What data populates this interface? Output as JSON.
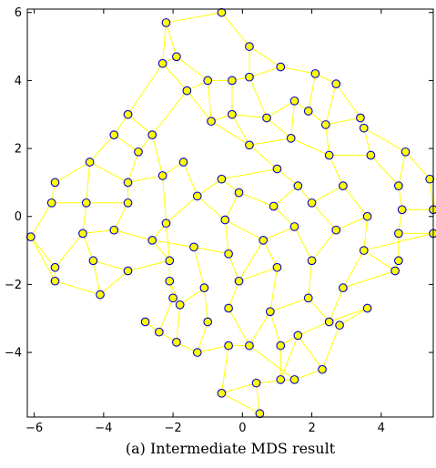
{
  "chart_data": {
    "type": "scatter",
    "caption": "(a) Intermediate MDS result",
    "xlim": [
      -6.2,
      5.5
    ],
    "ylim": [
      -5.9,
      6.1
    ],
    "xticks": [
      -6,
      -4,
      -2,
      0,
      2,
      4
    ],
    "yticks": [
      -4,
      -2,
      0,
      2,
      4,
      6
    ],
    "grid": false,
    "colors": {
      "edge": "#ffff00",
      "marker_edge": "#0000cc",
      "marker_face": "#ffff00",
      "axes": "#000000"
    },
    "points": [
      [
        -0.6,
        6.0
      ],
      [
        -2.2,
        5.7
      ],
      [
        0.2,
        5.0
      ],
      [
        -1.9,
        4.7
      ],
      [
        -2.3,
        4.5
      ],
      [
        1.1,
        4.4
      ],
      [
        2.1,
        4.2
      ],
      [
        0.2,
        4.1
      ],
      [
        -0.3,
        4.0
      ],
      [
        -1.0,
        4.0
      ],
      [
        2.7,
        3.9
      ],
      [
        -1.6,
        3.7
      ],
      [
        1.5,
        3.4
      ],
      [
        1.9,
        3.1
      ],
      [
        3.4,
        2.9
      ],
      [
        -3.3,
        3.0
      ],
      [
        0.7,
        2.9
      ],
      [
        -0.3,
        3.0
      ],
      [
        2.4,
        2.7
      ],
      [
        3.5,
        2.6
      ],
      [
        -0.9,
        2.8
      ],
      [
        -2.6,
        2.4
      ],
      [
        -3.7,
        2.4
      ],
      [
        1.4,
        2.3
      ],
      [
        0.2,
        2.1
      ],
      [
        -3.0,
        1.9
      ],
      [
        4.7,
        1.9
      ],
      [
        2.5,
        1.8
      ],
      [
        3.7,
        1.8
      ],
      [
        -4.4,
        1.6
      ],
      [
        -1.7,
        1.6
      ],
      [
        1.0,
        1.4
      ],
      [
        -2.3,
        1.2
      ],
      [
        -0.6,
        1.1
      ],
      [
        -3.3,
        1.0
      ],
      [
        -5.4,
        1.0
      ],
      [
        5.4,
        1.1
      ],
      [
        2.9,
        0.9
      ],
      [
        1.6,
        0.9
      ],
      [
        4.5,
        0.9
      ],
      [
        -1.3,
        0.6
      ],
      [
        -0.1,
        0.7
      ],
      [
        -5.5,
        0.4
      ],
      [
        -4.5,
        0.4
      ],
      [
        -3.3,
        0.4
      ],
      [
        2.0,
        0.4
      ],
      [
        0.9,
        0.3
      ],
      [
        4.6,
        0.2
      ],
      [
        5.5,
        0.2
      ],
      [
        -0.5,
        -0.1
      ],
      [
        3.6,
        0.0
      ],
      [
        -2.2,
        -0.2
      ],
      [
        1.5,
        -0.3
      ],
      [
        2.7,
        -0.4
      ],
      [
        -3.7,
        -0.4
      ],
      [
        -4.6,
        -0.5
      ],
      [
        4.5,
        -0.5
      ],
      [
        5.5,
        -0.5
      ],
      [
        -6.1,
        -0.6
      ],
      [
        -2.6,
        -0.7
      ],
      [
        0.6,
        -0.7
      ],
      [
        -1.4,
        -0.9
      ],
      [
        3.5,
        -1.0
      ],
      [
        -0.4,
        -1.1
      ],
      [
        -4.3,
        -1.3
      ],
      [
        -2.1,
        -1.3
      ],
      [
        4.5,
        -1.3
      ],
      [
        2.0,
        -1.3
      ],
      [
        1.0,
        -1.5
      ],
      [
        -3.3,
        -1.6
      ],
      [
        -5.4,
        -1.5
      ],
      [
        4.4,
        -1.6
      ],
      [
        -5.4,
        -1.9
      ],
      [
        -0.1,
        -1.9
      ],
      [
        -2.1,
        -1.9
      ],
      [
        -1.1,
        -2.1
      ],
      [
        2.9,
        -2.1
      ],
      [
        -4.1,
        -2.3
      ],
      [
        -2.0,
        -2.4
      ],
      [
        1.9,
        -2.4
      ],
      [
        -1.8,
        -2.6
      ],
      [
        -0.4,
        -2.7
      ],
      [
        3.6,
        -2.7
      ],
      [
        0.8,
        -2.8
      ],
      [
        -2.8,
        -3.1
      ],
      [
        -1.0,
        -3.1
      ],
      [
        2.5,
        -3.1
      ],
      [
        2.8,
        -3.2
      ],
      [
        -2.4,
        -3.4
      ],
      [
        1.6,
        -3.5
      ],
      [
        0.2,
        -3.8
      ],
      [
        -0.4,
        -3.8
      ],
      [
        1.1,
        -3.8
      ],
      [
        -1.9,
        -3.7
      ],
      [
        -1.3,
        -4.0
      ],
      [
        2.3,
        -4.5
      ],
      [
        1.1,
        -4.8
      ],
      [
        1.5,
        -4.8
      ],
      [
        0.4,
        -4.9
      ],
      [
        -0.6,
        -5.2
      ],
      [
        0.5,
        -5.8
      ]
    ],
    "edges": [
      [
        0,
        1
      ],
      [
        0,
        2
      ],
      [
        1,
        3
      ],
      [
        1,
        4
      ],
      [
        2,
        7
      ],
      [
        2,
        5
      ],
      [
        3,
        4
      ],
      [
        3,
        9
      ],
      [
        4,
        11
      ],
      [
        4,
        15
      ],
      [
        5,
        6
      ],
      [
        5,
        7
      ],
      [
        6,
        10
      ],
      [
        6,
        13
      ],
      [
        7,
        8
      ],
      [
        7,
        16
      ],
      [
        8,
        9
      ],
      [
        8,
        17
      ],
      [
        9,
        11
      ],
      [
        9,
        20
      ],
      [
        10,
        14
      ],
      [
        10,
        18
      ],
      [
        11,
        20
      ],
      [
        11,
        21
      ],
      [
        12,
        13
      ],
      [
        12,
        16
      ],
      [
        12,
        23
      ],
      [
        13,
        18
      ],
      [
        14,
        19
      ],
      [
        14,
        18
      ],
      [
        15,
        21
      ],
      [
        15,
        22
      ],
      [
        16,
        17
      ],
      [
        16,
        23
      ],
      [
        17,
        20
      ],
      [
        17,
        24
      ],
      [
        18,
        27
      ],
      [
        19,
        28
      ],
      [
        19,
        26
      ],
      [
        20,
        24
      ],
      [
        21,
        25
      ],
      [
        21,
        32
      ],
      [
        22,
        25
      ],
      [
        22,
        29
      ],
      [
        23,
        24
      ],
      [
        23,
        27
      ],
      [
        24,
        31
      ],
      [
        25,
        34
      ],
      [
        26,
        36
      ],
      [
        26,
        39
      ],
      [
        27,
        37
      ],
      [
        27,
        28
      ],
      [
        28,
        39
      ],
      [
        29,
        34
      ],
      [
        29,
        35
      ],
      [
        29,
        43
      ],
      [
        30,
        32
      ],
      [
        30,
        40
      ],
      [
        31,
        38
      ],
      [
        31,
        33
      ],
      [
        32,
        34
      ],
      [
        32,
        51
      ],
      [
        33,
        41
      ],
      [
        33,
        40
      ],
      [
        34,
        44
      ],
      [
        35,
        42
      ],
      [
        36,
        48
      ],
      [
        37,
        45
      ],
      [
        37,
        50
      ],
      [
        38,
        46
      ],
      [
        38,
        45
      ],
      [
        39,
        47
      ],
      [
        40,
        51
      ],
      [
        40,
        49
      ],
      [
        41,
        49
      ],
      [
        41,
        46
      ],
      [
        42,
        43
      ],
      [
        42,
        58
      ],
      [
        43,
        44
      ],
      [
        43,
        55
      ],
      [
        44,
        54
      ],
      [
        45,
        53
      ],
      [
        46,
        52
      ],
      [
        47,
        48
      ],
      [
        47,
        56
      ],
      [
        48,
        57
      ],
      [
        49,
        63
      ],
      [
        49,
        60
      ],
      [
        50,
        62
      ],
      [
        50,
        53
      ],
      [
        51,
        59
      ],
      [
        51,
        65
      ],
      [
        52,
        60
      ],
      [
        52,
        67
      ],
      [
        53,
        67
      ],
      [
        54,
        55
      ],
      [
        54,
        59
      ],
      [
        55,
        64
      ],
      [
        55,
        70
      ],
      [
        56,
        57
      ],
      [
        56,
        66
      ],
      [
        57,
        62
      ],
      [
        58,
        70
      ],
      [
        58,
        72
      ],
      [
        59,
        61
      ],
      [
        60,
        68
      ],
      [
        60,
        73
      ],
      [
        61,
        63
      ],
      [
        61,
        75
      ],
      [
        62,
        71
      ],
      [
        62,
        76
      ],
      [
        63,
        73
      ],
      [
        64,
        69
      ],
      [
        64,
        77
      ],
      [
        65,
        69
      ],
      [
        65,
        74
      ],
      [
        66,
        71
      ],
      [
        67,
        79
      ],
      [
        68,
        73
      ],
      [
        68,
        83
      ],
      [
        69,
        77
      ],
      [
        70,
        72
      ],
      [
        71,
        76
      ],
      [
        72,
        77
      ],
      [
        73,
        81
      ],
      [
        74,
        78
      ],
      [
        74,
        80
      ],
      [
        75,
        80
      ],
      [
        75,
        85
      ],
      [
        76,
        86
      ],
      [
        78,
        88
      ],
      [
        79,
        83
      ],
      [
        79,
        86
      ],
      [
        80,
        93
      ],
      [
        81,
        90
      ],
      [
        82,
        87
      ],
      [
        82,
        86
      ],
      [
        83,
        92
      ],
      [
        84,
        88
      ],
      [
        85,
        94
      ],
      [
        86,
        89
      ],
      [
        87,
        95
      ],
      [
        88,
        93
      ],
      [
        89,
        92
      ],
      [
        89,
        95
      ],
      [
        90,
        91
      ],
      [
        90,
        97
      ],
      [
        91,
        94
      ],
      [
        91,
        99
      ],
      [
        92,
        96
      ],
      [
        93,
        94
      ],
      [
        95,
        97
      ],
      [
        96,
        97
      ],
      [
        97,
        98
      ],
      [
        98,
        100
      ],
      [
        99,
        100
      ],
      [
        99,
        98
      ],
      [
        89,
        96
      ],
      [
        83,
        90
      ],
      [
        59,
        65
      ]
    ]
  }
}
